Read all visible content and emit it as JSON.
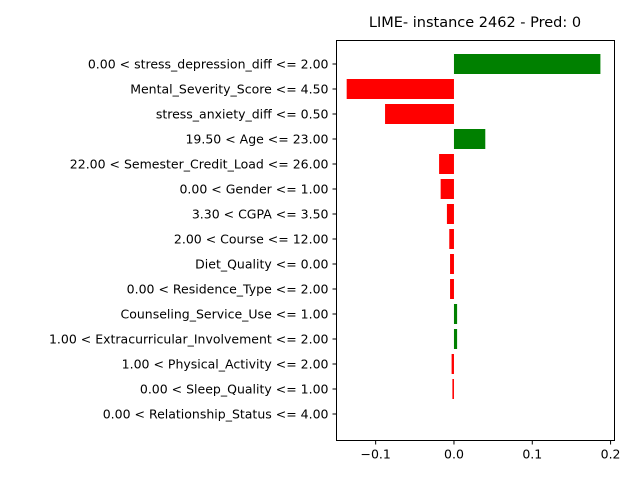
{
  "chart_data": {
    "type": "bar",
    "orientation": "horizontal",
    "title": "LIME- instance 2462 - Pred: 0",
    "xlabel": "",
    "ylabel": "",
    "xlim": [
      -0.15,
      0.205
    ],
    "xticks": [
      -0.1,
      0.0,
      0.1,
      0.2
    ],
    "xtick_labels": [
      "−0.1",
      "0.0",
      "0.1",
      "0.2"
    ],
    "grid": false,
    "positive_color": "#008000",
    "negative_color": "#ff0000",
    "categories": [
      "0.00 < stress_depression_diff <= 2.00",
      "Mental_Severity_Score <= 4.50",
      "stress_anxiety_diff <= 0.50",
      "19.50 < Age <= 23.00",
      "22.00 < Semester_Credit_Load <= 26.00",
      "0.00 < Gender <= 1.00",
      "3.30 < CGPA <= 3.50",
      "2.00 < Course <= 12.00",
      "Diet_Quality <= 0.00",
      "0.00 < Residence_Type <= 2.00",
      "Counseling_Service_Use <= 1.00",
      "1.00 < Extracurricular_Involvement <= 2.00",
      "1.00 < Physical_Activity <= 2.00",
      "0.00 < Sleep_Quality <= 1.00",
      "0.00 < Relationship_Status <= 4.00"
    ],
    "values": [
      0.187,
      -0.137,
      -0.088,
      0.04,
      -0.019,
      -0.017,
      -0.009,
      -0.006,
      -0.005,
      -0.005,
      0.004,
      0.004,
      -0.003,
      -0.002,
      0.0
    ]
  }
}
